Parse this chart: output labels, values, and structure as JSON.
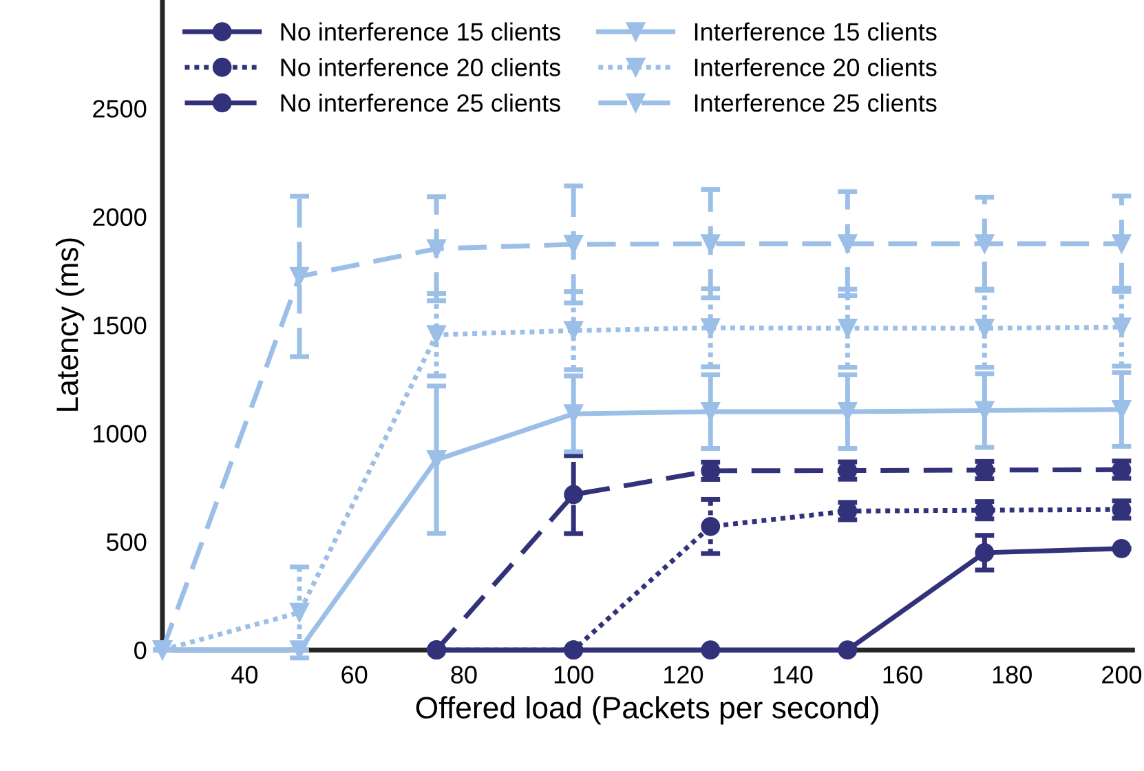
{
  "chart_data": {
    "type": "line",
    "xlabel": "Offered load (Packets per second)",
    "ylabel": "Latency (ms)",
    "xlim": [
      25,
      202
    ],
    "xticks": [
      40,
      60,
      80,
      100,
      120,
      140,
      160,
      180,
      200
    ],
    "ylim": [
      0,
      3000
    ],
    "yticks": [
      0,
      500,
      1000,
      1500,
      2000,
      2500
    ],
    "grid": false,
    "legend": "top left",
    "series": [
      {
        "name": "No interference 15 clients",
        "color": "#32327a",
        "marker": "circle",
        "line_style": "solid",
        "x": [
          75,
          100,
          125,
          150,
          175,
          200
        ],
        "values": [
          0,
          0,
          0,
          0,
          449,
          468
        ],
        "errors": [
          null,
          null,
          null,
          null,
          80,
          null
        ]
      },
      {
        "name": "No interference 20 clients",
        "color": "#32327a",
        "marker": "circle",
        "line_style": "dotted",
        "x": [
          75,
          100,
          125,
          150,
          175,
          200
        ],
        "values": [
          0,
          0,
          570,
          641,
          645,
          648
        ],
        "errors": [
          null,
          null,
          125,
          40,
          40,
          40
        ]
      },
      {
        "name": "No interference 25 clients",
        "color": "#32327a",
        "marker": "circle",
        "line_style": "dashed",
        "x": [
          75,
          100,
          125,
          150,
          175,
          200
        ],
        "values": [
          0,
          717,
          827,
          828,
          830,
          832
        ],
        "errors": [
          null,
          180,
          40,
          40,
          40,
          40
        ]
      },
      {
        "name": "Interference 15 clients",
        "color": "#9bbfe6",
        "marker": "triangle",
        "line_style": "solid",
        "x": [
          25,
          50,
          75,
          100,
          125,
          150,
          175,
          200
        ],
        "values": [
          0,
          0,
          878,
          1090,
          1100,
          1100,
          1105,
          1110
        ],
        "errors": [
          null,
          null,
          340,
          175,
          170,
          170,
          170,
          170
        ]
      },
      {
        "name": "Interference 20 clients",
        "color": "#9bbfe6",
        "marker": "triangle",
        "line_style": "dotted",
        "x": [
          25,
          50,
          75,
          100,
          125,
          150,
          175,
          200
        ],
        "values": [
          0,
          173,
          1455,
          1474,
          1487,
          1485,
          1485,
          1490
        ],
        "errors": [
          null,
          210,
          190,
          180,
          180,
          180,
          180,
          180
        ]
      },
      {
        "name": "Interference 25 clients",
        "color": "#9bbfe6",
        "marker": "triangle",
        "line_style": "dashed",
        "x": [
          25,
          50,
          75,
          100,
          125,
          150,
          175,
          200
        ],
        "values": [
          0,
          1724,
          1852,
          1872,
          1875,
          1875,
          1875,
          1875
        ],
        "errors": [
          null,
          370,
          240,
          270,
          250,
          240,
          215,
          220
        ]
      }
    ]
  }
}
